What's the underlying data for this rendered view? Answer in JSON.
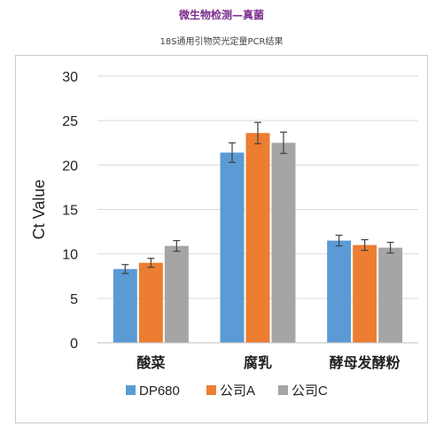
{
  "header": {
    "title": "微生物检测—真菌",
    "subtitle": "18S通用引物荧光定量PCR结果"
  },
  "chart_data": {
    "type": "bar",
    "title": "",
    "xlabel": "",
    "ylabel": "Ct Value",
    "ylim": [
      0,
      30
    ],
    "yticks": [
      0,
      5,
      10,
      15,
      20,
      25,
      30
    ],
    "categories": [
      "酸菜",
      "腐乳",
      "酵母发酵粉"
    ],
    "series": [
      {
        "name": "DP680",
        "color": "#5b9bd5",
        "values": [
          8.3,
          21.4,
          11.5
        ],
        "errors": [
          0.5,
          1.1,
          0.6
        ]
      },
      {
        "name": "公司A",
        "color": "#ed7d31",
        "values": [
          9.0,
          23.6,
          11.0
        ],
        "errors": [
          0.5,
          1.2,
          0.6
        ]
      },
      {
        "name": "公司C",
        "color": "#a5a5a5",
        "values": [
          10.9,
          22.5,
          10.7
        ],
        "errors": [
          0.6,
          1.2,
          0.6
        ]
      }
    ],
    "grid": true,
    "legend": "bottom"
  }
}
